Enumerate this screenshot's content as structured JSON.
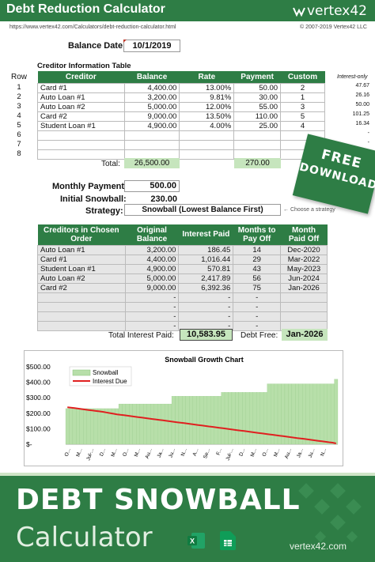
{
  "header": {
    "title": "Debt Reduction Calculator",
    "logo": "vertex42",
    "url": "https://www.vertex42.com/Calculators/debt-reduction-calculator.html",
    "copyright": "© 2007-2019 Vertex42 LLC"
  },
  "balance_date": {
    "label": "Balance Date:",
    "value": "10/1/2019"
  },
  "creditor_table": {
    "caption": "Creditor Information Table",
    "row_header": "Row",
    "columns": [
      "Creditor",
      "Balance",
      "Rate",
      "Payment",
      "Custom"
    ],
    "interest_only_header": "Interest-only",
    "rows": [
      {
        "row": "1",
        "creditor": "Card #1",
        "balance": "4,400.00",
        "rate": "13.00%",
        "payment": "50.00",
        "custom": "2",
        "interest_only": "47.67"
      },
      {
        "row": "2",
        "creditor": "Auto Loan #1",
        "balance": "3,200.00",
        "rate": "9.81%",
        "payment": "30.00",
        "custom": "1",
        "interest_only": "26.16"
      },
      {
        "row": "3",
        "creditor": "Auto Loan #2",
        "balance": "5,000.00",
        "rate": "12.00%",
        "payment": "55.00",
        "custom": "3",
        "interest_only": "50.00"
      },
      {
        "row": "4",
        "creditor": "Card #2",
        "balance": "9,000.00",
        "rate": "13.50%",
        "payment": "110.00",
        "custom": "5",
        "interest_only": "101.25"
      },
      {
        "row": "5",
        "creditor": "Student Loan #1",
        "balance": "4,900.00",
        "rate": "4.00%",
        "payment": "25.00",
        "custom": "4",
        "interest_only": "16.34"
      },
      {
        "row": "6",
        "creditor": "",
        "balance": "",
        "rate": "",
        "payment": "",
        "custom": "",
        "interest_only": "-"
      },
      {
        "row": "7",
        "creditor": "",
        "balance": "",
        "rate": "",
        "payment": "",
        "custom": "",
        "interest_only": "-"
      },
      {
        "row": "8",
        "creditor": "",
        "balance": "",
        "rate": "",
        "payment": "",
        "custom": "",
        "interest_only": ""
      }
    ],
    "total_label": "Total:",
    "total_balance": "26,500.00",
    "total_payment": "270.00"
  },
  "settings": {
    "monthly_payment_label": "Monthly Payment:",
    "monthly_payment": "500.00",
    "initial_snowball_label": "Initial Snowball:",
    "initial_snowball": "230.00",
    "strategy_label": "Strategy:",
    "strategy": "Snowball (Lowest Balance First)",
    "strategy_hint": "← Choose a strategy"
  },
  "free_download": {
    "line1": "FREE",
    "line2": "DOWNLOAD"
  },
  "payoff_table": {
    "columns": [
      "Creditors in Chosen Order",
      "Original Balance",
      "Interest Paid",
      "Months to Pay Off",
      "Month Paid Off"
    ],
    "rows": [
      {
        "creditor": "Auto Loan #1",
        "original": "3,200.00",
        "interest": "186.45",
        "months": "14",
        "paid_off": "Dec-2020"
      },
      {
        "creditor": "Card #1",
        "original": "4,400.00",
        "interest": "1,016.44",
        "months": "29",
        "paid_off": "Mar-2022"
      },
      {
        "creditor": "Student Loan #1",
        "original": "4,900.00",
        "interest": "570.81",
        "months": "43",
        "paid_off": "May-2023"
      },
      {
        "creditor": "Auto Loan #2",
        "original": "5,000.00",
        "interest": "2,417.89",
        "months": "56",
        "paid_off": "Jun-2024"
      },
      {
        "creditor": "Card #2",
        "original": "9,000.00",
        "interest": "6,392.36",
        "months": "75",
        "paid_off": "Jan-2026"
      },
      {
        "creditor": "",
        "original": "-",
        "interest": "-",
        "months": "-",
        "paid_off": ""
      },
      {
        "creditor": "",
        "original": "-",
        "interest": "-",
        "months": "-",
        "paid_off": ""
      },
      {
        "creditor": "",
        "original": "-",
        "interest": "-",
        "months": "-",
        "paid_off": ""
      },
      {
        "creditor": "",
        "original": "-",
        "interest": "-",
        "months": "-",
        "paid_off": ""
      }
    ],
    "total_interest_label": "Total Interest Paid:",
    "total_interest": "10,583.95",
    "debt_free_label": "Debt Free:",
    "debt_free": "Jan-2026"
  },
  "chart_data": {
    "type": "area",
    "title": "Snowball Growth Chart",
    "yticks": [
      "$500.00",
      "$400.00",
      "$300.00",
      "$200.00",
      "$100.00",
      "$-"
    ],
    "ylim": [
      0,
      500
    ],
    "xtick_labels": [
      "O...",
      "M...",
      "Jul-...",
      "D...",
      "M...",
      "O...",
      "M...",
      "Au...",
      "Ja...",
      "Ju...",
      "N...",
      "A...",
      "Se...",
      "F...",
      "Jul-...",
      "D...",
      "M...",
      "O...",
      "M...",
      "Au...",
      "Ja...",
      "Ju...",
      "N..."
    ],
    "series": [
      {
        "name": "Snowball",
        "color": "#b7dfa9",
        "values": [
          230,
          230,
          230,
          230,
          230,
          230,
          230,
          230,
          230,
          230,
          230,
          230,
          230,
          230,
          230,
          260,
          260,
          260,
          260,
          260,
          260,
          260,
          260,
          260,
          260,
          260,
          260,
          260,
          260,
          260,
          310,
          310,
          310,
          310,
          310,
          310,
          310,
          310,
          310,
          310,
          310,
          310,
          310,
          310,
          335,
          335,
          335,
          335,
          335,
          335,
          335,
          335,
          335,
          335,
          335,
          335,
          335,
          390,
          390,
          390,
          390,
          390,
          390,
          390,
          390,
          390,
          390,
          390,
          390,
          390,
          390,
          390,
          390,
          390,
          390,
          390,
          420
        ]
      },
      {
        "name": "Interest Due",
        "color": "#e02020",
        "values": [
          239,
          236,
          233,
          230,
          227,
          224,
          221,
          218,
          215,
          212,
          209,
          205,
          201,
          197,
          193,
          190,
          187,
          184,
          181,
          178,
          175,
          172,
          169,
          166,
          163,
          160,
          157,
          154,
          151,
          148,
          145,
          142,
          139,
          136,
          133,
          130,
          127,
          124,
          121,
          118,
          115,
          112,
          109,
          106,
          103,
          100,
          97,
          94,
          91,
          88,
          85,
          82,
          79,
          76,
          73,
          70,
          67,
          64,
          61,
          58,
          55,
          52,
          49,
          46,
          43,
          40,
          37,
          34,
          31,
          28,
          25,
          22,
          19,
          16,
          13,
          10,
          5
        ]
      }
    ]
  },
  "footer": {
    "title": "DEBT SNOWBALL",
    "subtitle": "Calculator",
    "site": "vertex42.com",
    "excel_icon_letter": "X"
  }
}
